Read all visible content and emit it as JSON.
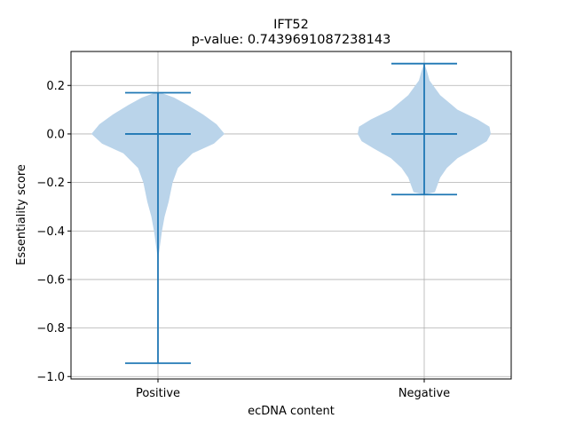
{
  "chart_data": {
    "type": "violin",
    "title": "IFT52",
    "subtitle": "p-value: 0.7439691087238143",
    "xlabel": "ecDNA content",
    "ylabel": "Essentiality score",
    "categories": [
      "Positive",
      "Negative"
    ],
    "ylim": [
      -1.01,
      0.34
    ],
    "yticks": [
      0.2,
      0.0,
      -0.2,
      -0.4,
      -0.6,
      -0.8,
      -1.0
    ],
    "ytick_labels": [
      "0.2",
      "0.0",
      "−0.2",
      "−0.4",
      "−0.6",
      "−0.8",
      "−1.0"
    ],
    "grid": true,
    "colors": {
      "body": "#bad4ea",
      "lines": "#1f77b4"
    },
    "series": [
      {
        "category": "Positive",
        "min": -0.945,
        "max": 0.17,
        "median": 0.0,
        "density": [
          [
            -0.945,
            0.0
          ],
          [
            -0.6,
            0.0
          ],
          [
            -0.5,
            0.005
          ],
          [
            -0.4,
            0.03
          ],
          [
            -0.34,
            0.05
          ],
          [
            -0.28,
            0.08
          ],
          [
            -0.2,
            0.11
          ],
          [
            -0.14,
            0.15
          ],
          [
            -0.08,
            0.26
          ],
          [
            -0.04,
            0.42
          ],
          [
            0.0,
            0.5
          ],
          [
            0.04,
            0.44
          ],
          [
            0.08,
            0.34
          ],
          [
            0.12,
            0.22
          ],
          [
            0.15,
            0.12
          ],
          [
            0.17,
            0.02
          ]
        ]
      },
      {
        "category": "Negative",
        "min": -0.25,
        "max": 0.29,
        "median": 0.0,
        "density": [
          [
            -0.25,
            0.0
          ],
          [
            -0.24,
            0.08
          ],
          [
            -0.21,
            0.1
          ],
          [
            -0.18,
            0.12
          ],
          [
            -0.14,
            0.17
          ],
          [
            -0.1,
            0.25
          ],
          [
            -0.06,
            0.38
          ],
          [
            -0.03,
            0.47
          ],
          [
            0.0,
            0.5
          ],
          [
            0.03,
            0.49
          ],
          [
            0.06,
            0.4
          ],
          [
            0.1,
            0.25
          ],
          [
            0.16,
            0.12
          ],
          [
            0.22,
            0.04
          ],
          [
            0.26,
            0.02
          ],
          [
            0.29,
            0.0
          ]
        ]
      }
    ]
  }
}
